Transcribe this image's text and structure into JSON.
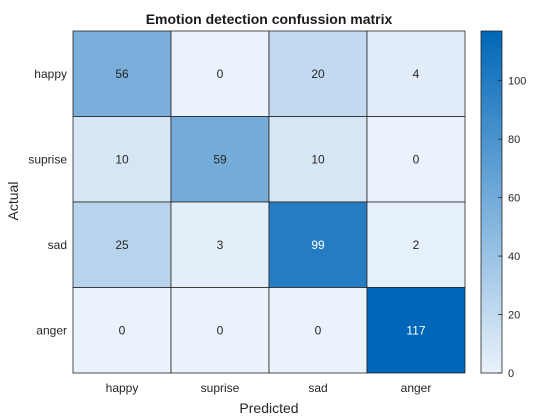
{
  "chart_data": {
    "type": "heatmap",
    "title": "Emotion detection confussion matrix",
    "xlabel": "Predicted",
    "ylabel": "Actual",
    "x_categories": [
      "happy",
      "suprise",
      "sad",
      "anger"
    ],
    "y_categories": [
      "happy",
      "suprise",
      "sad",
      "anger"
    ],
    "values": [
      [
        56,
        0,
        20,
        4
      ],
      [
        10,
        59,
        10,
        0
      ],
      [
        25,
        3,
        99,
        2
      ],
      [
        0,
        0,
        0,
        117
      ]
    ],
    "colorbar": {
      "range": [
        0,
        117
      ],
      "ticks": [
        0,
        20,
        40,
        60,
        80,
        100
      ],
      "colormap": [
        "#eaf2fb",
        "#0067b8"
      ]
    },
    "grid": true
  }
}
